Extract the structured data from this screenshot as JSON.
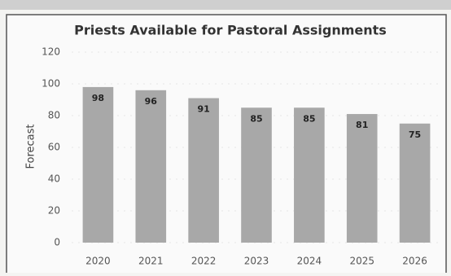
{
  "chart_data": {
    "type": "bar",
    "title": "Priests Available for Pastoral Assignments",
    "y_label": "Forecast",
    "categories": [
      "2020",
      "2021",
      "2022",
      "2023",
      "2024",
      "2025",
      "2026"
    ],
    "values": [
      98,
      96,
      91,
      85,
      85,
      81,
      75
    ],
    "color": "#a8a8a8",
    "ylim": [
      0,
      120
    ],
    "yticks": [
      0,
      20,
      40,
      60,
      80,
      100,
      120
    ],
    "grid": true
  }
}
